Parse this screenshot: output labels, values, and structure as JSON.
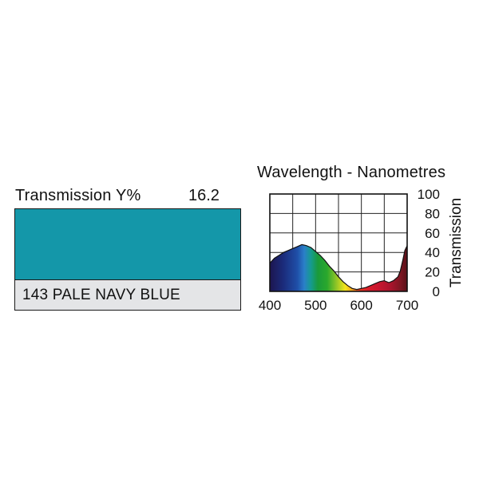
{
  "filter": {
    "transmission_label": "Transmission Y%",
    "transmission_value": "16.2",
    "name": "143 PALE NAVY BLUE",
    "swatch_color": "#1497a9"
  },
  "chart_data": {
    "type": "area",
    "title": "Wavelength - Nanometres",
    "xlabel": "",
    "ylabel": "Transmission",
    "xlim": [
      400,
      700
    ],
    "ylim": [
      0,
      100
    ],
    "x_ticks": [
      400,
      500,
      600,
      700
    ],
    "y_ticks": [
      0,
      20,
      40,
      60,
      80,
      100
    ],
    "x_grid": [
      400,
      450,
      500,
      550,
      600,
      650,
      700
    ],
    "y_grid": [
      0,
      20,
      40,
      60,
      80,
      100
    ],
    "grid": true,
    "fill": "visible-spectrum gradient",
    "series": [
      {
        "x": [
          400,
          410,
          420,
          430,
          440,
          450,
          460,
          470,
          480,
          490,
          500,
          510,
          520,
          530,
          540,
          550,
          560,
          570,
          580,
          590,
          600,
          610,
          620,
          630,
          640,
          650,
          660,
          670,
          680,
          685,
          690,
          695,
          700
        ],
        "y": [
          29,
          34,
          37,
          40,
          42,
          44,
          46,
          48,
          47,
          45,
          41,
          37,
          32,
          26,
          21,
          15,
          10,
          6,
          3,
          2,
          3,
          4,
          6,
          8,
          10,
          11,
          9,
          11,
          15,
          21,
          31,
          42,
          47
        ]
      }
    ]
  }
}
